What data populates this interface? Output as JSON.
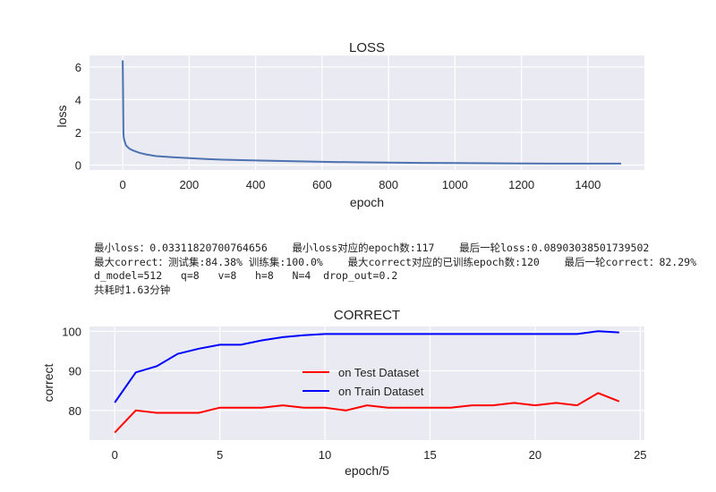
{
  "summary": {
    "line1": "最小loss：0.03311820700764656    最小loss对应的epoch数:117    最后一轮loss:0.08903038501739502",
    "line2": "最大correct：测试集:84.38% 训练集:100.0%    最大correct对应的已训练epoch数:120    最后一轮correct：82.29%",
    "line3": "d_model=512   q=8   v=8   h=8   N=4  drop_out=0.2",
    "line4": "共耗时1.63分钟"
  },
  "colors": {
    "background": "#eaeaf2",
    "grid": "#ffffff",
    "loss_line": "#4c72b0",
    "test_line": "#ff0000",
    "train_line": "#0000ff"
  },
  "chart_data": [
    {
      "type": "line",
      "title": "LOSS",
      "xlabel": "epoch",
      "ylabel": "loss",
      "xlim": [
        -100,
        1570
      ],
      "ylim": [
        -0.3,
        6.7
      ],
      "xticks": [
        0,
        200,
        400,
        600,
        800,
        1000,
        1200,
        1400
      ],
      "yticks": [
        0,
        2,
        4,
        6
      ],
      "grid": true,
      "series": [
        {
          "x": [
            0,
            1,
            2,
            3,
            4,
            5,
            10,
            20,
            30,
            50,
            70,
            100,
            150,
            200,
            250,
            300,
            400,
            500,
            600,
            700,
            800,
            900,
            1000,
            1100,
            1200,
            1300,
            1400,
            1500
          ],
          "values": [
            6.4,
            4.5,
            2.0,
            1.7,
            1.6,
            1.5,
            1.2,
            1.0,
            0.9,
            0.75,
            0.65,
            0.55,
            0.48,
            0.42,
            0.37,
            0.33,
            0.28,
            0.24,
            0.2,
            0.17,
            0.15,
            0.13,
            0.12,
            0.11,
            0.1,
            0.09,
            0.09,
            0.09
          ]
        }
      ]
    },
    {
      "type": "line",
      "title": "CORRECT",
      "xlabel": "epoch/5",
      "ylabel": "correct",
      "xlim": [
        -1.2,
        25.2
      ],
      "ylim": [
        72.5,
        101.2
      ],
      "xticks": [
        0,
        5,
        10,
        15,
        20,
        25
      ],
      "yticks": [
        80,
        90,
        100
      ],
      "grid": true,
      "legend": "center",
      "x": [
        0,
        1,
        2,
        3,
        4,
        5,
        6,
        7,
        8,
        9,
        10,
        11,
        12,
        13,
        14,
        15,
        16,
        17,
        18,
        19,
        20,
        21,
        22,
        23,
        24
      ],
      "series": [
        {
          "name": "on Test Dataset",
          "values": [
            74.4,
            80.0,
            79.4,
            79.4,
            79.4,
            80.7,
            80.7,
            80.7,
            81.3,
            80.7,
            80.7,
            80.0,
            81.3,
            80.7,
            80.7,
            80.7,
            80.7,
            81.3,
            81.3,
            81.9,
            81.3,
            81.9,
            81.3,
            84.38,
            82.29
          ]
        },
        {
          "name": "on Train Dataset",
          "values": [
            82.0,
            89.6,
            91.2,
            94.3,
            95.6,
            96.6,
            96.6,
            97.7,
            98.5,
            99.0,
            99.3,
            99.3,
            99.3,
            99.3,
            99.3,
            99.3,
            99.3,
            99.3,
            99.3,
            99.3,
            99.3,
            99.3,
            99.3,
            100.0,
            99.7
          ]
        }
      ]
    }
  ]
}
